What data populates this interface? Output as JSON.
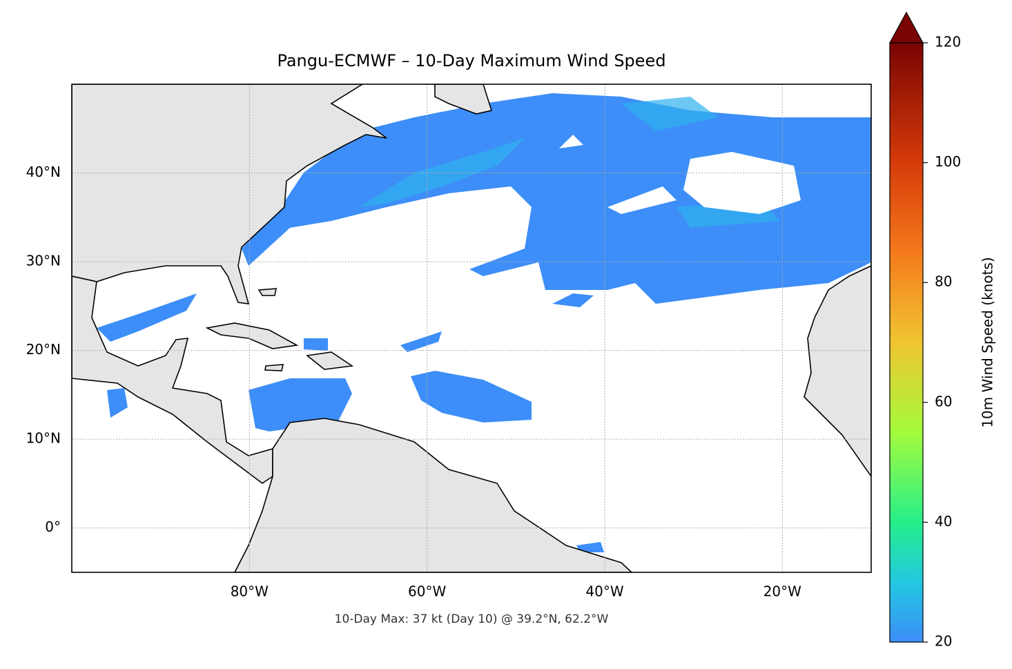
{
  "title": "Pangu-ECMWF – 10-Day Maximum Wind Speed",
  "annotation": "10-Day Max: 37 kt (Day 10) @ 39.2°N, 62.2°W",
  "map": {
    "xlim": [
      -100,
      -10
    ],
    "ylim": [
      -5,
      50
    ],
    "grid": true,
    "xticks": [
      {
        "value": -80,
        "label": "80°W"
      },
      {
        "value": -60,
        "label": "60°W"
      },
      {
        "value": -40,
        "label": "40°W"
      },
      {
        "value": -20,
        "label": "20°W"
      }
    ],
    "yticks": [
      {
        "value": 0,
        "label": "0°"
      },
      {
        "value": 10,
        "label": "10°N"
      },
      {
        "value": 20,
        "label": "20°N"
      },
      {
        "value": 30,
        "label": "30°N"
      },
      {
        "value": 40,
        "label": "40°N"
      }
    ]
  },
  "colorbar": {
    "label": "10m Wind Speed (knots)",
    "lim": [
      20,
      120
    ],
    "ticks": [
      20,
      40,
      60,
      80,
      100,
      120
    ],
    "extend": "max"
  }
}
